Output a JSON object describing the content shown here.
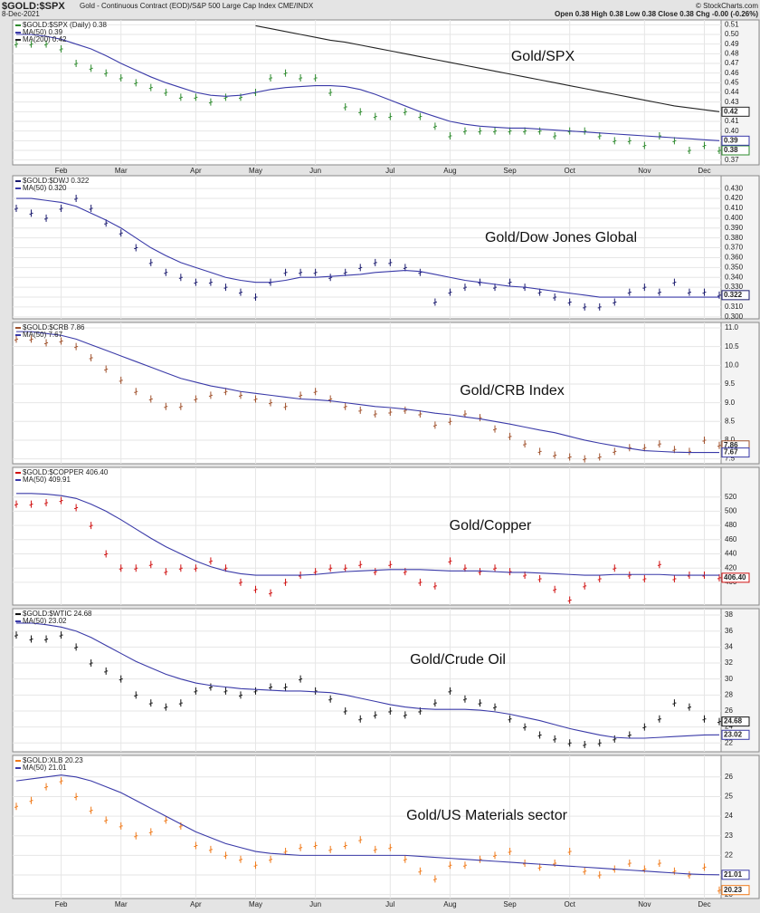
{
  "header": {
    "symbol": "$GOLD:$SPX",
    "description": "Gold - Continuous Contract (EOD)/S&P 500 Large Cap Index CME/INDX",
    "date": "8-Dec-2021",
    "quote": "Open 0.38  High 0.38  Low 0.38  Close 0.38  Chg -0.00 (-0.26%)",
    "credit": "© StockCharts.com"
  },
  "chart_data": [
    {
      "type": "ohlc",
      "title": "Gold/SPX",
      "categories": [
        null,
        null,
        null,
        "Feb",
        null,
        null,
        null,
        "Mar",
        null,
        null,
        null,
        null,
        "Apr",
        null,
        null,
        null,
        "May",
        null,
        null,
        null,
        "Jun",
        null,
        null,
        null,
        null,
        "Jul",
        null,
        null,
        null,
        "Aug",
        null,
        null,
        null,
        "Sep",
        null,
        null,
        null,
        "Oct",
        null,
        null,
        null,
        null,
        "Nov",
        null,
        null,
        null,
        "Dec",
        null
      ],
      "ylim": [
        0.365,
        0.515
      ],
      "yticks": [
        0.37,
        0.38,
        0.39,
        {
          "value": 0.4,
          "label": "0.40"
        },
        0.41,
        0.42,
        0.43,
        0.44,
        0.45,
        0.46,
        0.47,
        0.48,
        0.49,
        {
          "value": 0.5,
          "label": "0.50"
        },
        0.51
      ],
      "grid": true,
      "series": [
        {
          "name": "$GOLD:$SPX (Daily) 0.38",
          "style": "bars",
          "color": "#2e8b2e",
          "end_label": "0.38",
          "values": [
            0.49,
            0.49,
            0.49,
            0.485,
            0.47,
            0.465,
            0.46,
            0.455,
            0.45,
            0.445,
            0.44,
            0.435,
            0.435,
            0.43,
            0.435,
            0.435,
            0.44,
            0.455,
            0.46,
            0.455,
            0.455,
            0.44,
            0.425,
            0.42,
            0.415,
            0.415,
            0.42,
            0.415,
            0.405,
            0.395,
            0.4,
            0.4,
            0.4,
            0.4,
            0.4,
            0.4,
            0.395,
            0.4,
            0.4,
            0.395,
            0.39,
            0.39,
            0.385,
            0.395,
            0.39,
            0.38,
            0.385,
            0.38
          ]
        },
        {
          "name": "MA(50) 0.39",
          "style": "line",
          "color": "#3a3aa8",
          "end_label": "0.39",
          "values": [
            0.5,
            0.5,
            0.498,
            0.495,
            0.49,
            0.485,
            0.478,
            0.47,
            0.463,
            0.456,
            0.45,
            0.445,
            0.44,
            0.437,
            0.436,
            0.437,
            0.44,
            0.443,
            0.445,
            0.446,
            0.447,
            0.447,
            0.446,
            0.443,
            0.438,
            0.432,
            0.426,
            0.42,
            0.415,
            0.41,
            0.407,
            0.405,
            0.404,
            0.403,
            0.403,
            0.402,
            0.401,
            0.4,
            0.399,
            0.398,
            0.397,
            0.396,
            0.395,
            0.394,
            0.393,
            0.392,
            0.391,
            0.39
          ]
        },
        {
          "name": "MA(200) 0.42",
          "style": "line",
          "color": "#222222",
          "end_label": "0.42",
          "values": [
            null,
            null,
            null,
            null,
            null,
            null,
            null,
            null,
            null,
            null,
            null,
            null,
            null,
            null,
            null,
            null,
            0.509,
            0.506,
            0.503,
            0.5,
            0.497,
            0.494,
            0.492,
            0.489,
            0.486,
            0.483,
            0.48,
            0.477,
            0.474,
            0.471,
            0.468,
            0.465,
            0.462,
            0.459,
            0.456,
            0.453,
            0.45,
            0.447,
            0.444,
            0.441,
            0.438,
            0.435,
            0.432,
            0.429,
            0.426,
            0.424,
            0.422,
            0.42
          ]
        }
      ]
    },
    {
      "type": "ohlc",
      "title": "Gold/Dow Jones Global",
      "ylim": [
        0.298,
        0.443
      ],
      "yticks": [
        {
          "value": 0.3,
          "label": "0.300"
        },
        {
          "value": 0.31,
          "label": "0.310"
        },
        {
          "value": 0.32,
          "label": "0.320"
        },
        {
          "value": 0.33,
          "label": "0.330"
        },
        {
          "value": 0.34,
          "label": "0.340"
        },
        {
          "value": 0.35,
          "label": "0.350"
        },
        {
          "value": 0.36,
          "label": "0.360"
        },
        {
          "value": 0.37,
          "label": "0.370"
        },
        {
          "value": 0.38,
          "label": "0.380"
        },
        {
          "value": 0.39,
          "label": "0.390"
        },
        {
          "value": 0.4,
          "label": "0.400"
        },
        {
          "value": 0.41,
          "label": "0.410"
        },
        {
          "value": 0.42,
          "label": "0.420"
        },
        {
          "value": 0.43,
          "label": "0.430"
        }
      ],
      "grid": true,
      "series": [
        {
          "name": "$GOLD:$DWJ 0.322",
          "style": "bars",
          "color": "#1a1a6e",
          "end_label": "0.322",
          "values": [
            0.41,
            0.405,
            0.4,
            0.41,
            0.42,
            0.41,
            0.395,
            0.385,
            0.37,
            0.355,
            0.345,
            0.34,
            0.335,
            0.335,
            0.33,
            0.325,
            0.32,
            0.335,
            0.345,
            0.345,
            0.345,
            0.34,
            0.345,
            0.35,
            0.355,
            0.355,
            0.35,
            0.345,
            0.315,
            0.325,
            0.33,
            0.335,
            0.33,
            0.335,
            0.33,
            0.325,
            0.32,
            0.315,
            0.31,
            0.31,
            0.315,
            0.325,
            0.33,
            0.325,
            0.335,
            0.325,
            0.325,
            0.322
          ]
        },
        {
          "name": "MA(50) 0.320",
          "style": "line",
          "color": "#3a3aa8",
          "values": [
            0.42,
            0.42,
            0.418,
            0.416,
            0.412,
            0.405,
            0.398,
            0.39,
            0.38,
            0.37,
            0.362,
            0.355,
            0.35,
            0.345,
            0.34,
            0.337,
            0.335,
            0.335,
            0.337,
            0.34,
            0.34,
            0.341,
            0.342,
            0.343,
            0.345,
            0.346,
            0.347,
            0.346,
            0.343,
            0.34,
            0.337,
            0.335,
            0.333,
            0.331,
            0.33,
            0.328,
            0.326,
            0.324,
            0.322,
            0.32,
            0.32,
            0.32,
            0.32,
            0.32,
            0.32,
            0.32,
            0.32,
            0.32
          ]
        }
      ]
    },
    {
      "type": "ohlc",
      "title": "Gold/CRB Index",
      "ylim": [
        7.37,
        11.145
      ],
      "yticks": [
        7.5,
        {
          "value": 8,
          "label": "8.0"
        },
        8.5,
        {
          "value": 9,
          "label": "9.0"
        },
        9.5,
        {
          "value": 10,
          "label": "10.0"
        },
        10.5,
        {
          "value": 11,
          "label": "11.0"
        }
      ],
      "grid": true,
      "series": [
        {
          "name": "$GOLD:$CRB 7.86",
          "style": "bars",
          "color": "#a0522d",
          "end_label": "7.86",
          "values": [
            10.7,
            10.7,
            10.6,
            10.65,
            10.5,
            10.2,
            9.9,
            9.6,
            9.3,
            9.1,
            8.9,
            8.9,
            9.1,
            9.2,
            9.3,
            9.2,
            9.1,
            9.0,
            8.9,
            9.2,
            9.3,
            9.1,
            8.9,
            8.8,
            8.7,
            8.75,
            8.8,
            8.7,
            8.4,
            8.5,
            8.7,
            8.6,
            8.3,
            8.1,
            7.9,
            7.7,
            7.6,
            7.55,
            7.5,
            7.55,
            7.7,
            7.8,
            7.8,
            7.9,
            7.75,
            7.7,
            8.0,
            7.86
          ]
        },
        {
          "name": "MA(50) 7.67",
          "style": "line",
          "color": "#3a3aa8",
          "end_label": "7.67",
          "values": [
            10.9,
            10.9,
            10.85,
            10.8,
            10.7,
            10.55,
            10.4,
            10.25,
            10.1,
            9.95,
            9.8,
            9.65,
            9.55,
            9.45,
            9.38,
            9.3,
            9.25,
            9.2,
            9.15,
            9.1,
            9.08,
            9.05,
            9.0,
            8.95,
            8.9,
            8.87,
            8.83,
            8.78,
            8.72,
            8.68,
            8.62,
            8.57,
            8.5,
            8.43,
            8.35,
            8.27,
            8.2,
            8.1,
            8.0,
            7.92,
            7.85,
            7.78,
            7.72,
            7.7,
            7.68,
            7.67,
            7.67,
            7.67
          ]
        }
      ]
    },
    {
      "type": "ohlc",
      "title": "Gold/Copper",
      "ylim": [
        368,
        561.7
      ],
      "yticks": [
        400,
        420,
        440,
        460,
        480,
        500,
        520
      ],
      "grid": true,
      "series": [
        {
          "name": "$GOLD:$COPPER 406.40",
          "style": "bars",
          "color": "#d01010",
          "end_label": "406.40",
          "values": [
            510,
            510,
            512,
            515,
            505,
            480,
            440,
            420,
            420,
            425,
            415,
            420,
            420,
            430,
            420,
            400,
            390,
            385,
            400,
            410,
            415,
            420,
            420,
            425,
            415,
            425,
            415,
            400,
            395,
            430,
            420,
            415,
            420,
            415,
            410,
            405,
            390,
            375,
            395,
            405,
            420,
            410,
            405,
            425,
            405,
            410,
            410,
            406.4
          ]
        },
        {
          "name": "MA(50) 409.91",
          "style": "line",
          "color": "#3a3aa8",
          "values": [
            525,
            525,
            524,
            522,
            518,
            510,
            500,
            488,
            475,
            462,
            450,
            440,
            430,
            422,
            416,
            412,
            410,
            410,
            410,
            410,
            411,
            413,
            415,
            416,
            417,
            418,
            418,
            418,
            417,
            416,
            416,
            416,
            415,
            414,
            414,
            413,
            412,
            411,
            410,
            410,
            411,
            411,
            411,
            411,
            410,
            410,
            410,
            409.91
          ]
        }
      ]
    },
    {
      "type": "ohlc",
      "title": "Gold/Crude Oil",
      "ylim": [
        20.9,
        38.8
      ],
      "yticks": [
        22,
        24,
        26,
        28,
        30,
        32,
        34,
        36,
        38
      ],
      "grid": true,
      "series": [
        {
          "name": "$GOLD:$WTIC 24.68",
          "style": "bars",
          "color": "#111111",
          "end_label": "24.68",
          "values": [
            35.5,
            35,
            35,
            35.5,
            34,
            32,
            31,
            30,
            28,
            27,
            26.5,
            27,
            28.5,
            29,
            28.5,
            28,
            28.5,
            29,
            29,
            30,
            28.5,
            27.5,
            26,
            25,
            25.5,
            26,
            25.5,
            26,
            27,
            28.5,
            27.5,
            27,
            26.5,
            25,
            24,
            23,
            22.5,
            22,
            21.8,
            22,
            22.5,
            23,
            24,
            25,
            27,
            26.5,
            25,
            24.68
          ]
        },
        {
          "name": "MA(50) 23.02",
          "style": "line",
          "color": "#3a3aa8",
          "end_label": "23.02",
          "values": [
            37,
            37,
            36.8,
            36.5,
            36,
            35.2,
            34.2,
            33.2,
            32.2,
            31.4,
            30.6,
            30,
            29.5,
            29.2,
            29,
            28.8,
            28.7,
            28.6,
            28.5,
            28.5,
            28.4,
            28.3,
            28,
            27.6,
            27.2,
            26.8,
            26.5,
            26.3,
            26.2,
            26.2,
            26.2,
            26.1,
            25.9,
            25.6,
            25.2,
            24.8,
            24.3,
            23.8,
            23.4,
            23,
            22.7,
            22.6,
            22.6,
            22.7,
            22.8,
            22.9,
            23,
            23.02
          ]
        }
      ]
    },
    {
      "type": "ohlc",
      "title": "Gold/US Materials sector",
      "categories": [
        null,
        null,
        null,
        "Feb",
        null,
        null,
        null,
        "Mar",
        null,
        null,
        null,
        null,
        "Apr",
        null,
        null,
        null,
        "May",
        null,
        null,
        null,
        "Jun",
        null,
        null,
        null,
        null,
        "Jul",
        null,
        null,
        null,
        "Aug",
        null,
        null,
        null,
        "Sep",
        null,
        null,
        null,
        "Oct",
        null,
        null,
        null,
        null,
        "Nov",
        null,
        null,
        null,
        "Dec",
        null
      ],
      "ylim": [
        19.8,
        27.1
      ],
      "yticks": [
        20,
        21,
        22,
        23,
        24,
        25,
        26
      ],
      "grid": true,
      "series": [
        {
          "name": "$GOLD:XLB 20.23",
          "style": "bars",
          "color": "#f07a1a",
          "end_label": "20.23",
          "values": [
            24.5,
            24.8,
            25.5,
            25.8,
            25,
            24.3,
            23.8,
            23.5,
            23,
            23.2,
            23.8,
            23.5,
            22.5,
            22.3,
            22,
            21.8,
            21.5,
            21.8,
            22.2,
            22.4,
            22.5,
            22.3,
            22.5,
            22.8,
            22.3,
            22.4,
            21.8,
            21.2,
            20.8,
            21.5,
            21.5,
            21.8,
            22,
            22.2,
            21.6,
            21.4,
            21.6,
            22.2,
            21.2,
            21,
            21.3,
            21.6,
            21.3,
            21.6,
            21.2,
            21,
            21.4,
            20.23
          ]
        },
        {
          "name": "MA(50) 21.01",
          "style": "line",
          "color": "#3a3aa8",
          "end_label": "21.01",
          "values": [
            25.8,
            25.9,
            26,
            26.1,
            26,
            25.8,
            25.5,
            25.2,
            24.8,
            24.4,
            24,
            23.6,
            23.2,
            22.9,
            22.6,
            22.4,
            22.2,
            22.1,
            22.05,
            22,
            22,
            22,
            22,
            22,
            22,
            22,
            22,
            21.95,
            21.9,
            21.85,
            21.8,
            21.75,
            21.7,
            21.65,
            21.6,
            21.55,
            21.5,
            21.45,
            21.4,
            21.35,
            21.3,
            21.25,
            21.2,
            21.15,
            21.1,
            21.05,
            21.02,
            21.01
          ]
        }
      ]
    }
  ]
}
